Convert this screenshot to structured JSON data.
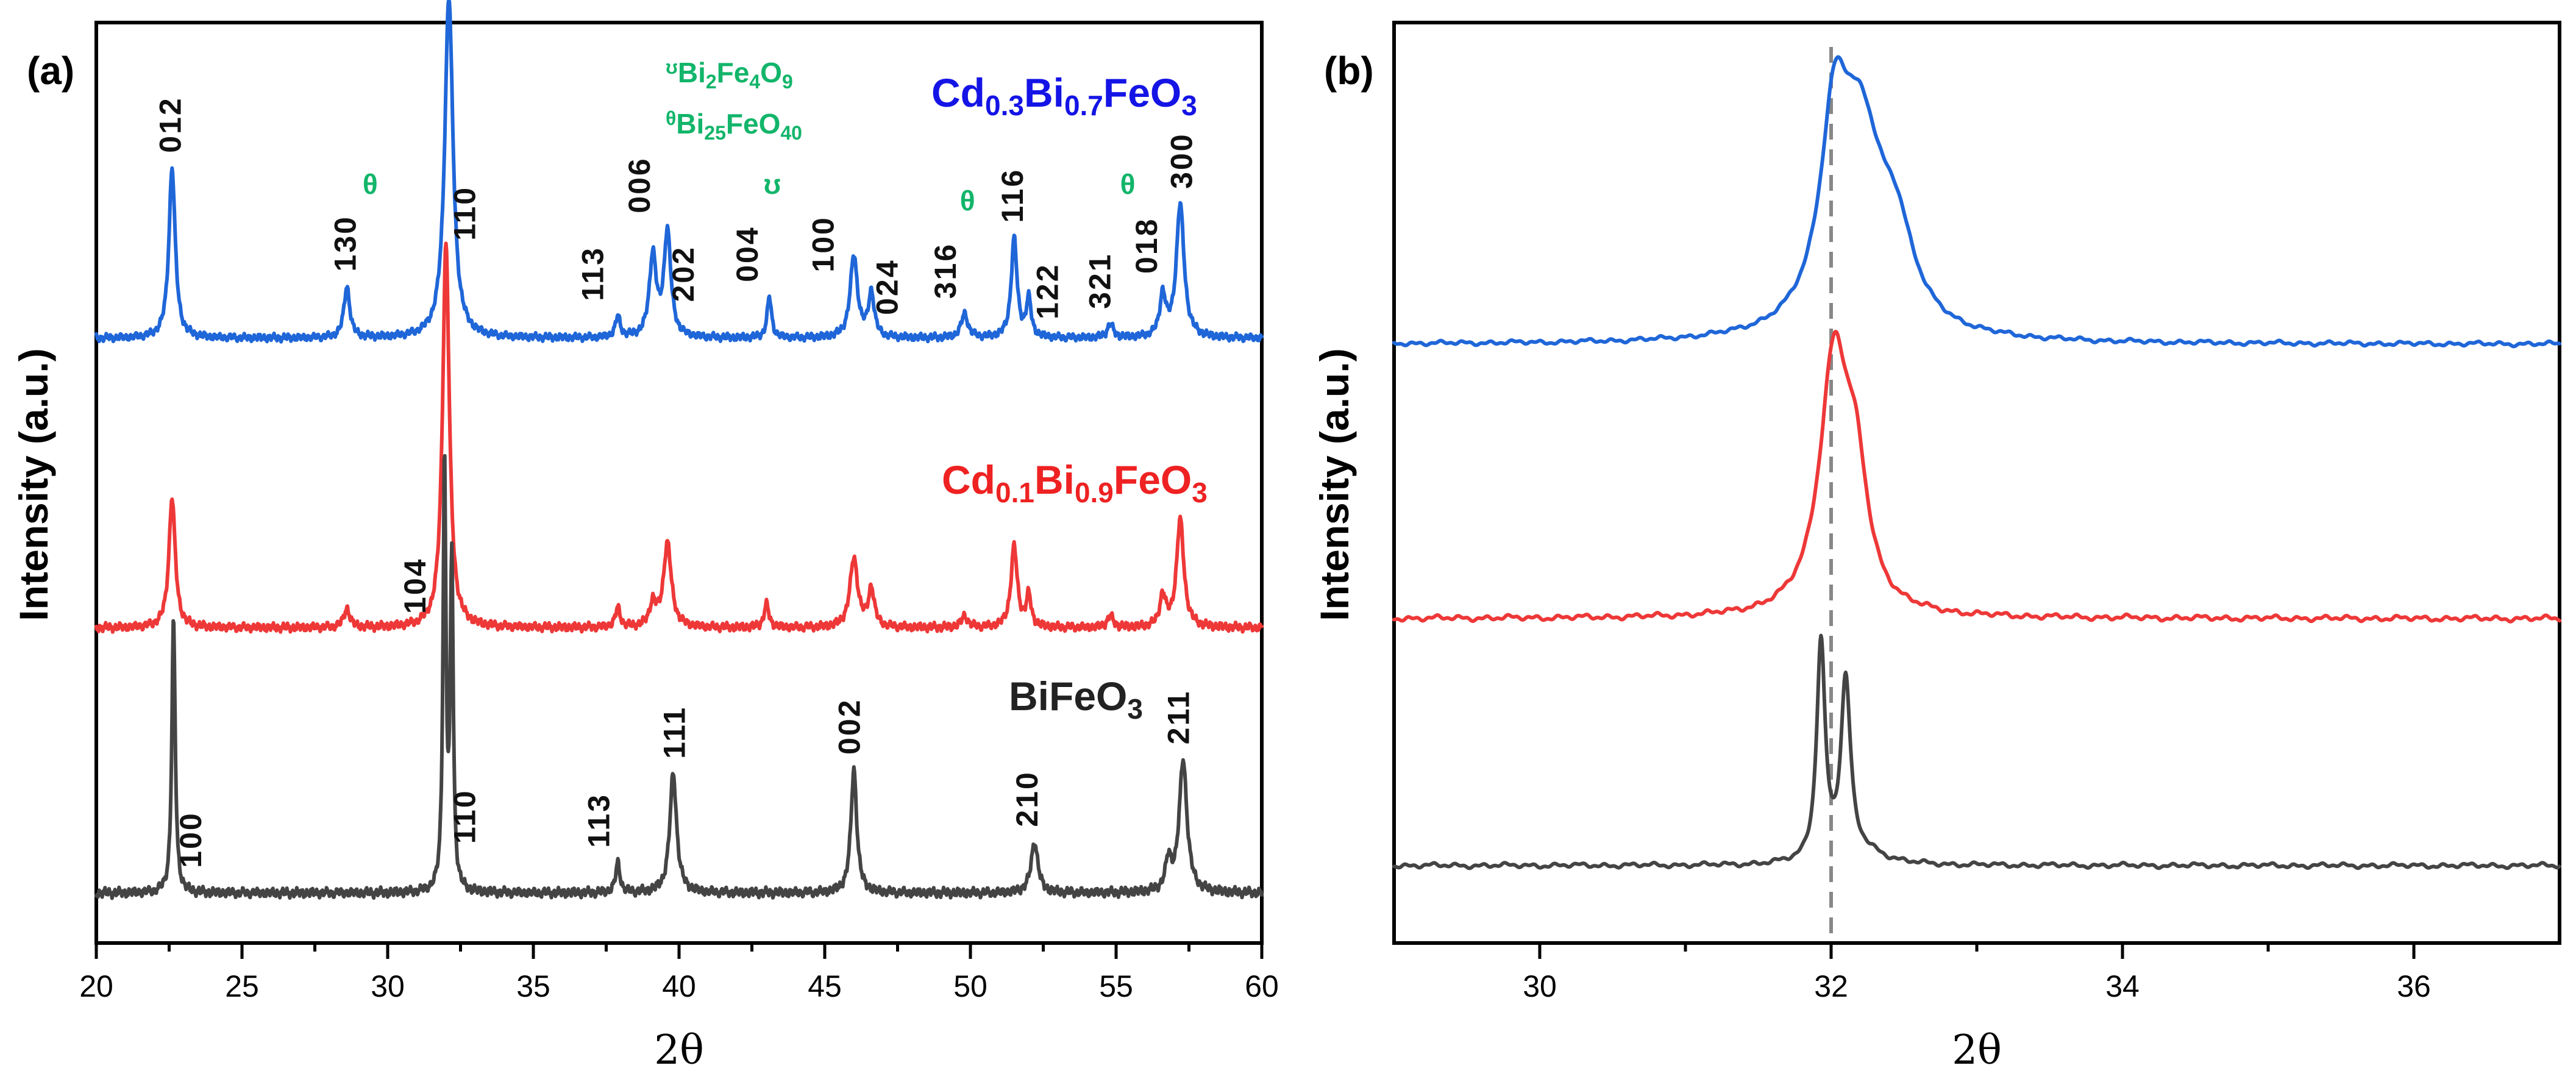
{
  "colors": {
    "cd03": "#1f66d8",
    "cd01": "#ee3838",
    "bfo": "#444444",
    "phase": "#12b56a",
    "label_cd03": "#1414e6",
    "label_cd01": "#ee2222",
    "label_bfo": "#222222"
  },
  "chart_data": [
    {
      "panel_label": "(a)",
      "type": "line",
      "xlabel": "2θ",
      "ylabel": "Intensity (a.u.)",
      "xlim": [
        20,
        60
      ],
      "xticks": [
        "20",
        "25",
        "30",
        "35",
        "40",
        "45",
        "50",
        "55",
        "60"
      ],
      "yticks": [],
      "series": [
        {
          "key": "cd03",
          "name_parts": [
            {
              "t": "Cd",
              "sub": false
            },
            {
              "t": "0.3",
              "sub": true
            },
            {
              "t": "Bi",
              "sub": false
            },
            {
              "t": "0.7",
              "sub": true
            },
            {
              "t": "FeO",
              "sub": false
            },
            {
              "t": "3",
              "sub": true
            }
          ],
          "baseline": 0.0,
          "scale": 0.62,
          "peaks": [
            {
              "x": 22.6,
              "h": 0.5,
              "w": 0.13
            },
            {
              "x": 28.6,
              "h": 0.15,
              "w": 0.12
            },
            {
              "x": 32.1,
              "h": 1.0,
              "w": 0.17
            },
            {
              "x": 37.9,
              "h": 0.06,
              "w": 0.1
            },
            {
              "x": 39.1,
              "h": 0.24,
              "w": 0.14
            },
            {
              "x": 39.6,
              "h": 0.31,
              "w": 0.14
            },
            {
              "x": 43.1,
              "h": 0.12,
              "w": 0.09
            },
            {
              "x": 46.0,
              "h": 0.24,
              "w": 0.15
            },
            {
              "x": 46.6,
              "h": 0.13,
              "w": 0.12
            },
            {
              "x": 49.8,
              "h": 0.07,
              "w": 0.14
            },
            {
              "x": 51.5,
              "h": 0.29,
              "w": 0.12
            },
            {
              "x": 52.0,
              "h": 0.11,
              "w": 0.1
            },
            {
              "x": 54.8,
              "h": 0.04,
              "w": 0.12
            },
            {
              "x": 56.6,
              "h": 0.12,
              "w": 0.12
            },
            {
              "x": 57.2,
              "h": 0.39,
              "w": 0.16
            }
          ]
        },
        {
          "key": "cd01",
          "name_parts": [
            {
              "t": "Cd",
              "sub": false
            },
            {
              "t": "0.1",
              "sub": true
            },
            {
              "t": "Bi",
              "sub": false
            },
            {
              "t": "0.9",
              "sub": true
            },
            {
              "t": "FeO",
              "sub": false
            },
            {
              "t": "3",
              "sub": true
            }
          ],
          "baseline": 0.0,
          "scale": 0.76,
          "peaks": [
            {
              "x": 22.6,
              "h": 0.34,
              "w": 0.13
            },
            {
              "x": 28.6,
              "h": 0.05,
              "w": 0.12
            },
            {
              "x": 32.0,
              "h": 1.0,
              "w": 0.14
            },
            {
              "x": 37.9,
              "h": 0.05,
              "w": 0.1
            },
            {
              "x": 39.1,
              "h": 0.06,
              "w": 0.13
            },
            {
              "x": 39.6,
              "h": 0.22,
              "w": 0.16
            },
            {
              "x": 43.0,
              "h": 0.06,
              "w": 0.1
            },
            {
              "x": 46.0,
              "h": 0.18,
              "w": 0.16
            },
            {
              "x": 46.6,
              "h": 0.1,
              "w": 0.12
            },
            {
              "x": 49.8,
              "h": 0.03,
              "w": 0.13
            },
            {
              "x": 51.5,
              "h": 0.21,
              "w": 0.13
            },
            {
              "x": 52.0,
              "h": 0.08,
              "w": 0.1
            },
            {
              "x": 54.8,
              "h": 0.03,
              "w": 0.12
            },
            {
              "x": 56.6,
              "h": 0.08,
              "w": 0.12
            },
            {
              "x": 57.2,
              "h": 0.28,
              "w": 0.15
            }
          ]
        },
        {
          "key": "bfo",
          "name_parts": [
            {
              "t": "BiFeO",
              "sub": false
            },
            {
              "t": "3",
              "sub": true
            }
          ],
          "baseline": 0.0,
          "scale": 0.58,
          "peaks": [
            {
              "x": 22.65,
              "h": 0.64,
              "w": 0.07
            },
            {
              "x": 31.95,
              "h": 1.0,
              "w": 0.06
            },
            {
              "x": 32.2,
              "h": 0.77,
              "w": 0.06
            },
            {
              "x": 37.9,
              "h": 0.07,
              "w": 0.09
            },
            {
              "x": 39.8,
              "h": 0.28,
              "w": 0.14
            },
            {
              "x": 46.0,
              "h": 0.29,
              "w": 0.12
            },
            {
              "x": 52.2,
              "h": 0.12,
              "w": 0.14
            },
            {
              "x": 56.8,
              "h": 0.07,
              "w": 0.12
            },
            {
              "x": 57.3,
              "h": 0.31,
              "w": 0.16
            }
          ]
        }
      ],
      "hkl_labels": [
        {
          "text": "012",
          "x": 22.9,
          "series": "cd03"
        },
        {
          "text": "130",
          "x": 28.9,
          "series": "cd03"
        },
        {
          "text": "110",
          "x": 33.0,
          "series": "cd03"
        },
        {
          "text": "113",
          "x": 37.4,
          "series": "cd03"
        },
        {
          "text": "006",
          "x": 39.0,
          "series": "cd03"
        },
        {
          "text": "202",
          "x": 40.5,
          "series": "cd03"
        },
        {
          "text": "004",
          "x": 42.7,
          "series": "cd03"
        },
        {
          "text": "100",
          "x": 45.3,
          "series": "cd03"
        },
        {
          "text": "024",
          "x": 47.5,
          "series": "cd03"
        },
        {
          "text": "316",
          "x": 49.5,
          "series": "cd03"
        },
        {
          "text": "116",
          "x": 51.8,
          "series": "cd03"
        },
        {
          "text": "122",
          "x": 53.0,
          "series": "cd03"
        },
        {
          "text": "321",
          "x": 54.8,
          "series": "cd03"
        },
        {
          "text": "018",
          "x": 56.4,
          "series": "cd03"
        },
        {
          "text": "300",
          "x": 57.6,
          "series": "cd03"
        },
        {
          "text": "100",
          "x": 23.6,
          "series": "bfo"
        },
        {
          "text": "104",
          "x": 31.3,
          "series": "bfo"
        },
        {
          "text": "110",
          "x": 33.0,
          "series": "bfo"
        },
        {
          "text": "113",
          "x": 37.6,
          "series": "bfo"
        },
        {
          "text": "111",
          "x": 40.2,
          "series": "bfo"
        },
        {
          "text": "002",
          "x": 46.2,
          "series": "bfo"
        },
        {
          "text": "210",
          "x": 52.3,
          "series": "bfo"
        },
        {
          "text": "211",
          "x": 57.5,
          "series": "bfo"
        }
      ],
      "phase_markers": [
        {
          "symbol": "θ",
          "x": 29.4
        },
        {
          "symbol": "ʊ",
          "x": 43.2
        },
        {
          "symbol": "θ",
          "x": 49.9
        },
        {
          "symbol": "θ",
          "x": 55.4
        }
      ],
      "phase_legend": [
        {
          "symbol": "ʊ",
          "parts": [
            {
              "t": "Bi",
              "sub": false
            },
            {
              "t": "2",
              "sub": true
            },
            {
              "t": "Fe",
              "sub": false
            },
            {
              "t": "4",
              "sub": true
            },
            {
              "t": "O",
              "sub": false
            },
            {
              "t": "9",
              "sub": true
            }
          ]
        },
        {
          "symbol": "θ",
          "parts": [
            {
              "t": "Bi",
              "sub": false
            },
            {
              "t": "25",
              "sub": true
            },
            {
              "t": "FeO",
              "sub": false
            },
            {
              "t": "40",
              "sub": true
            }
          ]
        }
      ]
    },
    {
      "panel_label": "(b)",
      "type": "line",
      "xlabel": "2θ",
      "ylabel": "Intensity (a.u.)",
      "xlim": [
        29,
        37
      ],
      "xticks": [
        "30",
        "32",
        "34",
        "36"
      ],
      "xtick_values": [
        30,
        32,
        34,
        36
      ],
      "reference_line_x": 32.0,
      "series": [
        {
          "key": "cd03",
          "peaks": [
            {
              "x": 32.02,
              "h": 0.8,
              "w": 0.11
            },
            {
              "x": 32.2,
              "h": 0.97,
              "w": 0.2
            },
            {
              "x": 32.45,
              "h": 0.35,
              "w": 0.14
            }
          ]
        },
        {
          "key": "cd01",
          "peaks": [
            {
              "x": 32.02,
              "h": 1.0,
              "w": 0.12
            },
            {
              "x": 32.17,
              "h": 0.45,
              "w": 0.1
            }
          ]
        },
        {
          "key": "bfo",
          "peaks": [
            {
              "x": 31.93,
              "h": 1.0,
              "w": 0.035
            },
            {
              "x": 32.1,
              "h": 0.81,
              "w": 0.04
            },
            {
              "x": 32.25,
              "h": 0.05,
              "w": 0.15
            }
          ]
        }
      ]
    }
  ]
}
